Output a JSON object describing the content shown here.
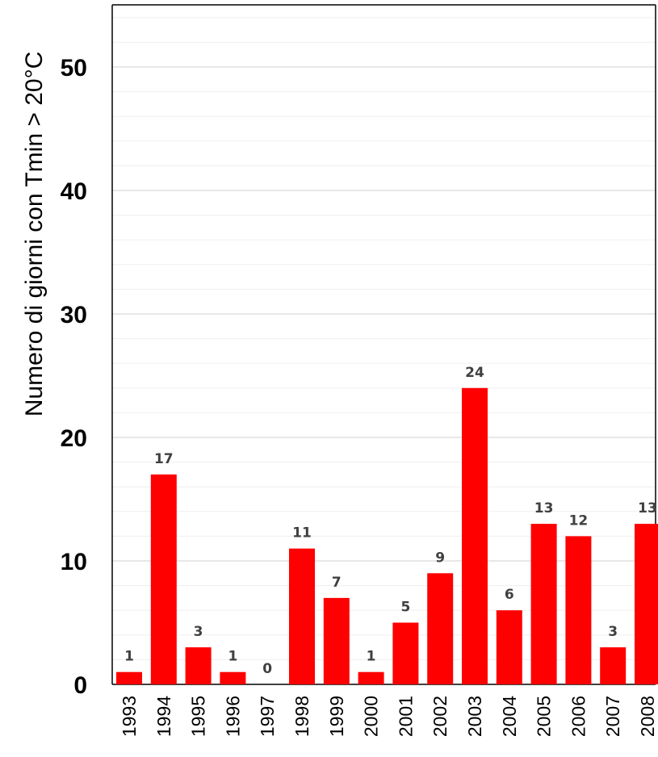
{
  "chart_data": {
    "type": "bar",
    "title": "",
    "xlabel": "",
    "ylabel": "Numero di giorni con Tmin > 20°C",
    "categories": [
      "1993",
      "1994",
      "1995",
      "1996",
      "1997",
      "1998",
      "1999",
      "2000",
      "2001",
      "2002",
      "2003",
      "2004",
      "2005",
      "2006",
      "2007",
      "2008"
    ],
    "values": [
      1,
      17,
      3,
      1,
      0,
      11,
      7,
      1,
      5,
      9,
      24,
      6,
      13,
      12,
      3,
      13
    ],
    "data_labels": [
      "1",
      "17",
      "3",
      "1",
      "0",
      "11",
      "7",
      "1",
      "5",
      "9",
      "24",
      "6",
      "13",
      "12",
      "3",
      "13"
    ],
    "ylim": [
      0,
      55
    ],
    "yticks": [
      0,
      10,
      20,
      30,
      40,
      50
    ],
    "ytick_labels": [
      "0",
      "10",
      "20",
      "30",
      "40",
      "50"
    ],
    "minor_grid_step": 2,
    "grid": true,
    "legend": "none",
    "colors": {
      "bar": "#ff0000",
      "data_label": "#404040",
      "major_grid": "#d9d9d9",
      "minor_grid": "#efefef",
      "axis": "#000000"
    }
  }
}
